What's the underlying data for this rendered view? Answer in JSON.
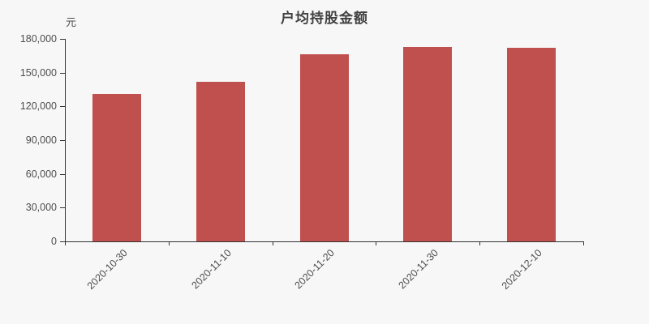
{
  "chart_data": {
    "type": "bar",
    "title": "户均持股金额",
    "unit_label": "元",
    "categories": [
      "2020-10-30",
      "2020-11-10",
      "2020-11-20",
      "2020-11-30",
      "2020-12-10"
    ],
    "values": [
      131000,
      141500,
      166500,
      172500,
      172000
    ],
    "xlabel": "",
    "ylabel": "元",
    "ylim": [
      0,
      180000
    ],
    "y_ticks": [
      {
        "value": 0,
        "label": "0"
      },
      {
        "value": 30000,
        "label": "30,000"
      },
      {
        "value": 60000,
        "label": "60,000"
      },
      {
        "value": 90000,
        "label": "90,000"
      },
      {
        "value": 120000,
        "label": "120,000"
      },
      {
        "value": 150000,
        "label": "150,000"
      },
      {
        "value": 180000,
        "label": "180,000"
      }
    ],
    "grid": false,
    "legend": null,
    "x_label_rotation_deg": -45,
    "bar_color": "#c0504d",
    "background_color": "#f7f7f7",
    "axis_color": "#333333",
    "text_color": "#4d4d4d",
    "title_color": "#404040"
  }
}
